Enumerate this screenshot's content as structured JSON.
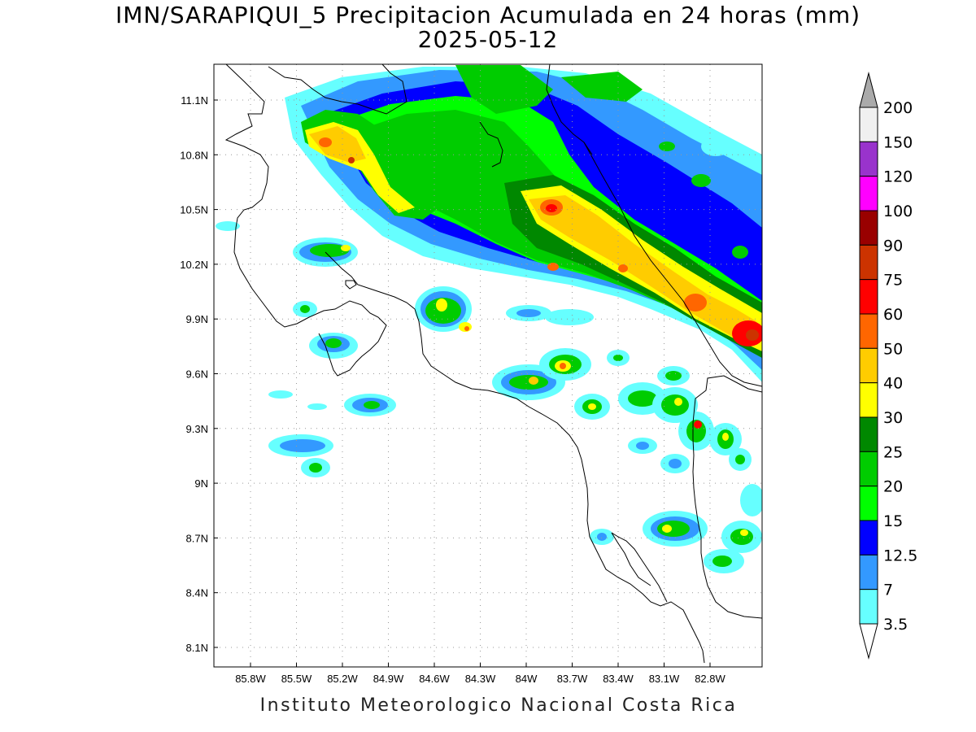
{
  "title": {
    "line1": "IMN/SARAPIQUI_5 Precipitacion Acumulada en 24 horas (mm)",
    "line2": "2025-05-12"
  },
  "footer": "Instituto Meteorologico Nacional Costa Rica",
  "map": {
    "lon_ticks": [
      "85.8W",
      "85.5W",
      "85.2W",
      "84.9W",
      "84.6W",
      "84.3W",
      "84W",
      "83.7W",
      "83.4W",
      "83.1W",
      "82.8W"
    ],
    "lat_ticks": [
      "11.1N",
      "10.8N",
      "10.5N",
      "10.2N",
      "9.9N",
      "9.6N",
      "9.3N",
      "9N",
      "8.7N",
      "8.4N",
      "8.1N"
    ],
    "gridlines": "dotted",
    "coastline_color": "#000000"
  },
  "colorbar": {
    "labels": [
      "200",
      "150",
      "120",
      "100",
      "90",
      "75",
      "60",
      "50",
      "40",
      "30",
      "25",
      "20",
      "15",
      "12.5",
      "7",
      "3.5"
    ],
    "colors": [
      "#f0f0f0",
      "#9933cc",
      "#ff00ff",
      "#990000",
      "#cc3300",
      "#ff0000",
      "#ff6600",
      "#ffcc00",
      "#ffff00",
      "#008800",
      "#00cc00",
      "#00ff00",
      "#0000ff",
      "#3399ff",
      "#66ffff"
    ],
    "over_color": "#aaaaaa"
  }
}
